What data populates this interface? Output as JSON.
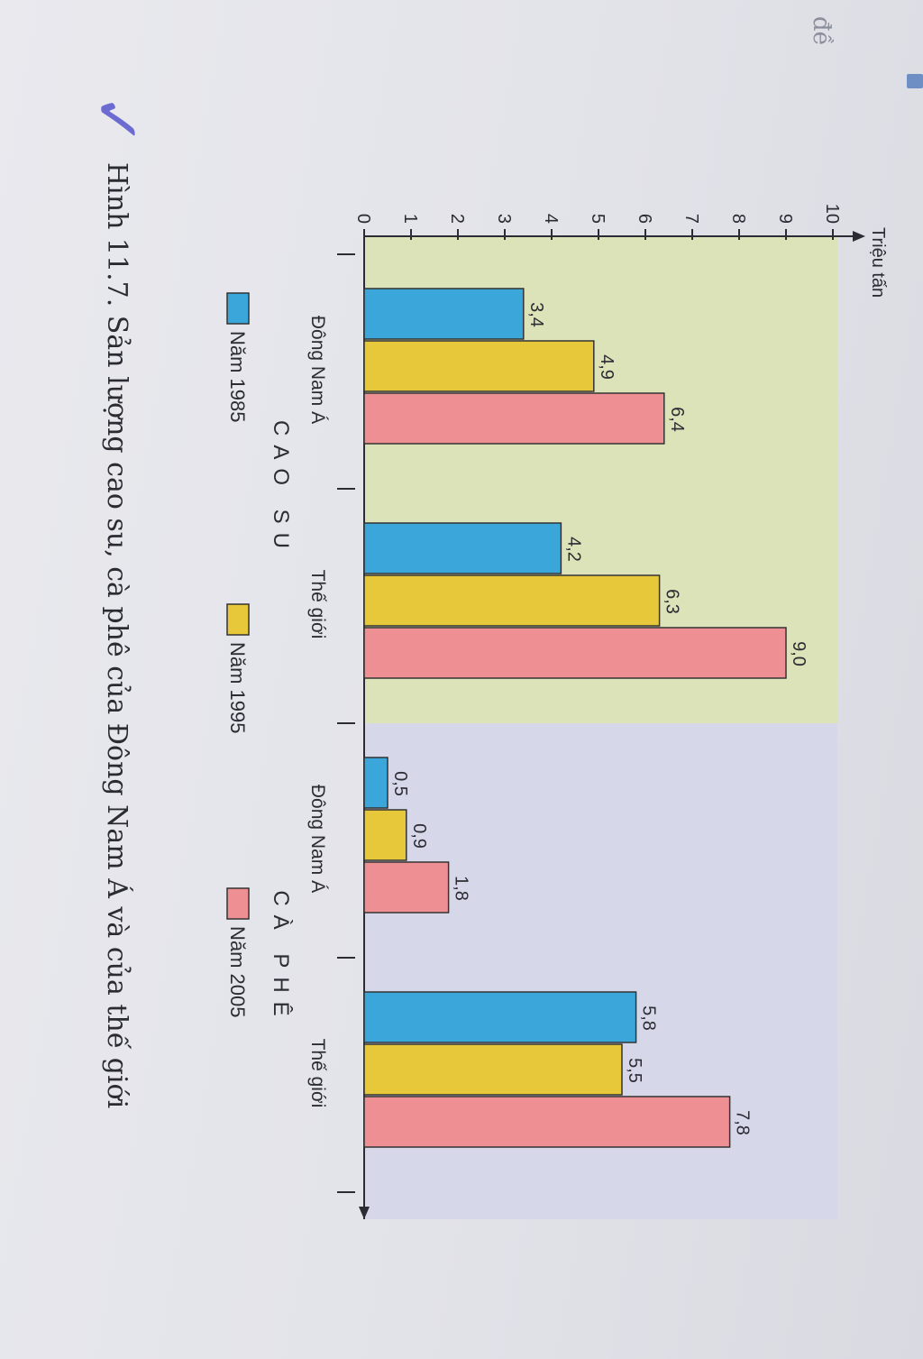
{
  "margin": {
    "word": "đề"
  },
  "chart_data": {
    "type": "bar",
    "ylabel": "Triệu tấn",
    "ylim": [
      0,
      10
    ],
    "yticks": [
      "0",
      "1",
      "2",
      "3",
      "4",
      "5",
      "6",
      "7",
      "8",
      "9",
      "10"
    ],
    "groups": [
      {
        "label": "CAO SU",
        "categories": [
          "Đông Nam Á",
          "Thế giới"
        ]
      },
      {
        "label": "CÀ PHÊ",
        "categories": [
          "Đông Nam Á",
          "Thế giới"
        ]
      }
    ],
    "categories": [
      "Đông Nam Á",
      "Thế giới",
      "Đông Nam Á",
      "Thế giới"
    ],
    "series": [
      {
        "name": "Năm 1985",
        "color": "#3aa6d9",
        "values": [
          3.4,
          4.2,
          0.5,
          5.8
        ],
        "value_labels": [
          "3,4",
          "4,2",
          "0,5",
          "5,8"
        ]
      },
      {
        "name": "Năm 1995",
        "color": "#e6c83a",
        "values": [
          4.9,
          6.3,
          0.9,
          5.5
        ],
        "value_labels": [
          "4,9",
          "6,3",
          "0,9",
          "5,5"
        ]
      },
      {
        "name": "Năm 2005",
        "color": "#ee8f94",
        "values": [
          6.4,
          9.0,
          1.8,
          7.8
        ],
        "value_labels": [
          "6,4",
          "9,0",
          "1,8",
          "7,8"
        ]
      }
    ],
    "legend": "bottom",
    "caption": "Hình 11.7. Sản lượng cao su, cà phê của Đông Nam Á và của thế giới",
    "colors": {
      "rubber_bg": "#dde3b8",
      "coffee_bg": "#d6d8ea",
      "axis": "#2c2c34"
    }
  }
}
